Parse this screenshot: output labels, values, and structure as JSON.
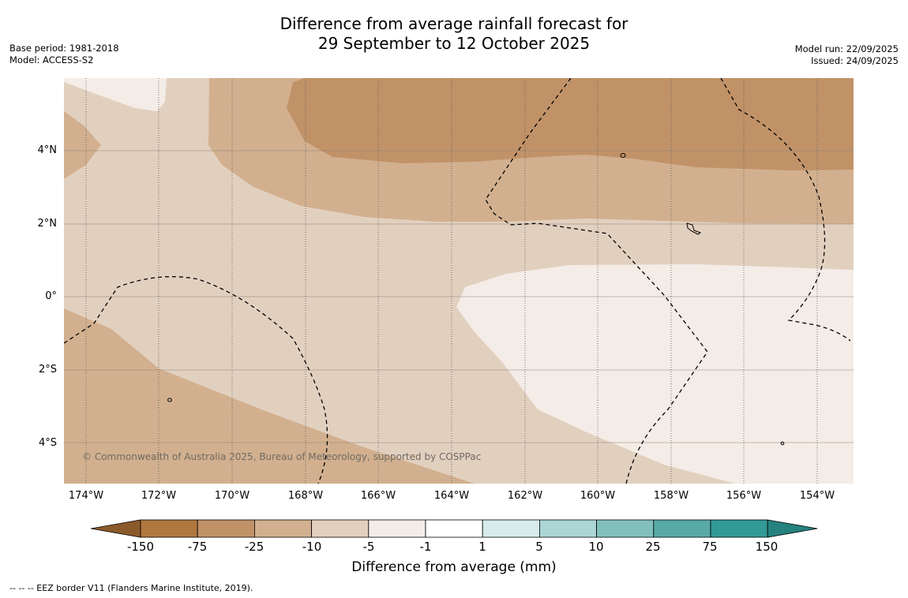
{
  "title": {
    "line1": "Difference from average rainfall forecast for",
    "line2": "29 September to 12 October 2025"
  },
  "meta_left": {
    "base_period": "Base period: 1981-2018",
    "model": "Model: ACCESS-S2"
  },
  "meta_right": {
    "model_run": "Model run: 22/09/2025",
    "issued": "Issued: 24/09/2025"
  },
  "lat_labels": [
    "4°N",
    "2°N",
    "0°",
    "2°S",
    "4°S"
  ],
  "lon_labels": [
    "174°W",
    "172°W",
    "170°W",
    "168°W",
    "166°W",
    "164°W",
    "162°W",
    "160°W",
    "158°W",
    "156°W",
    "154°W"
  ],
  "copyright": "© Commonwealth of Australia 2025, Bureau of Meteorology, supported by COSPPac",
  "colorbar": {
    "ticks": [
      "-150",
      "-75",
      "-25",
      "-10",
      "-5",
      "-1",
      "1",
      "5",
      "10",
      "25",
      "75",
      "150"
    ],
    "colors": [
      "#8b5a2b",
      "#b0773f",
      "#c19268",
      "#d2b08f",
      "#e3d0bf",
      "#f4ece6",
      "#ffffff",
      "#d7ecea",
      "#acd6d5",
      "#82c0be",
      "#58aaa8",
      "#329a97",
      "#26827f"
    ],
    "title": "Difference from average (mm)"
  },
  "footnote": "--  --  -- EEZ border V11 (Flanders Marine Institute, 2019)."
}
